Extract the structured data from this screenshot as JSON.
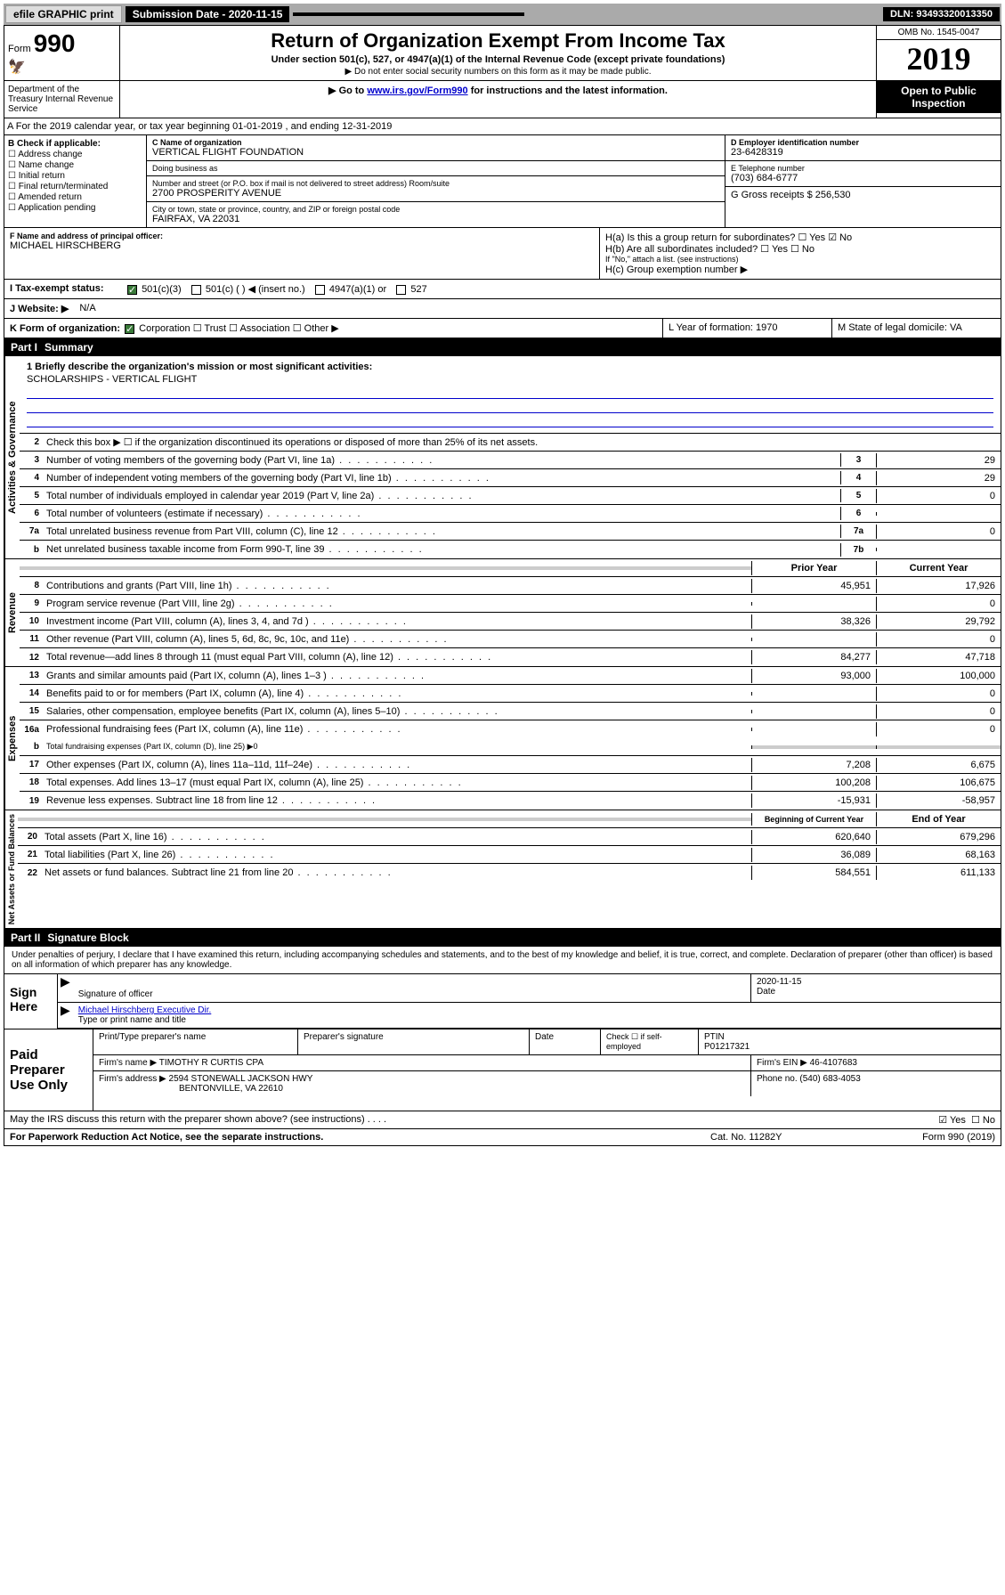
{
  "topbar": {
    "efile": "efile GRAPHIC print",
    "sub_label": "Submission Date - 2020-11-15",
    "dln": "DLN: 93493320013350"
  },
  "header": {
    "form_prefix": "Form",
    "form_no": "990",
    "title": "Return of Organization Exempt From Income Tax",
    "subtitle": "Under section 501(c), 527, or 4947(a)(1) of the Internal Revenue Code (except private foundations)",
    "note1": "▶ Do not enter social security numbers on this form as it may be made public.",
    "note2_pre": "▶ Go to ",
    "note2_link": "www.irs.gov/Form990",
    "note2_post": " for instructions and the latest information.",
    "omb": "OMB No. 1545-0047",
    "year": "2019",
    "open": "Open to Public Inspection",
    "dept": "Department of the Treasury Internal Revenue Service"
  },
  "a_row": "A For the 2019 calendar year, or tax year beginning 01-01-2019    , and ending 12-31-2019",
  "box_b": {
    "label": "B Check if applicable:",
    "items": [
      "☐ Address change",
      "☐ Name change",
      "☐ Initial return",
      "☐ Final return/terminated",
      "☐ Amended return",
      "☐ Application pending"
    ]
  },
  "box_c": {
    "name_label": "C Name of organization",
    "name": "VERTICAL FLIGHT FOUNDATION",
    "dba_label": "Doing business as",
    "addr_label": "Number and street (or P.O. box if mail is not delivered to street address)    Room/suite",
    "addr": "2700 PROSPERITY AVENUE",
    "city_label": "City or town, state or province, country, and ZIP or foreign postal code",
    "city": "FAIRFAX, VA  22031"
  },
  "box_d": {
    "label": "D Employer identification number",
    "value": "23-6428319"
  },
  "box_e": {
    "label": "E Telephone number",
    "value": "(703) 684-6777"
  },
  "box_g": {
    "label": "G Gross receipts $ 256,530"
  },
  "box_f": {
    "label": "F  Name and address of principal officer:",
    "value": "MICHAEL HIRSCHBERG"
  },
  "box_h": {
    "a": "H(a)  Is this a group return for subordinates?",
    "a_yes": "☐ Yes",
    "a_no": "☑ No",
    "b": "H(b)  Are all subordinates included?",
    "b_yes": "☐ Yes",
    "b_no": "☐ No",
    "b_note": "If \"No,\" attach a list. (see instructions)",
    "c": "H(c)  Group exemption number ▶"
  },
  "row_i": {
    "label": "I    Tax-exempt status:",
    "opt1": "501(c)(3)",
    "opt2": "501(c) (  ) ◀ (insert no.)",
    "opt3": "4947(a)(1) or",
    "opt4": "527"
  },
  "row_j": {
    "label": "J   Website: ▶",
    "value": "N/A"
  },
  "row_k": {
    "label": "K Form of organization:",
    "opts": "Corporation  ☐ Trust  ☐ Association  ☐ Other ▶",
    "l": "L Year of formation: 1970",
    "m": "M State of legal domicile: VA"
  },
  "part1": {
    "no": "Part I",
    "title": "Summary"
  },
  "sideLabels": {
    "gov": "Activities & Governance",
    "rev": "Revenue",
    "exp": "Expenses",
    "net": "Net Assets or Fund Balances"
  },
  "mission": {
    "prompt": "1  Briefly describe the organization's mission or most significant activities:",
    "text": "SCHOLARSHIPS - VERTICAL FLIGHT"
  },
  "line2": "Check this box ▶ ☐  if the organization discontinued its operations or disposed of more than 25% of its net assets.",
  "lines_gov": [
    {
      "n": "3",
      "t": "Number of voting members of the governing body (Part VI, line 1a)",
      "c": "3",
      "v": "29"
    },
    {
      "n": "4",
      "t": "Number of independent voting members of the governing body (Part VI, line 1b)",
      "c": "4",
      "v": "29"
    },
    {
      "n": "5",
      "t": "Total number of individuals employed in calendar year 2019 (Part V, line 2a)",
      "c": "5",
      "v": "0"
    },
    {
      "n": "6",
      "t": "Total number of volunteers (estimate if necessary)",
      "c": "6",
      "v": ""
    },
    {
      "n": "7a",
      "t": "Total unrelated business revenue from Part VIII, column (C), line 12",
      "c": "7a",
      "v": "0"
    },
    {
      "n": "b",
      "t": "Net unrelated business taxable income from Form 990-T, line 39",
      "c": "7b",
      "v": ""
    }
  ],
  "col_hdr": {
    "prior": "Prior Year",
    "curr": "Current Year"
  },
  "lines_rev": [
    {
      "n": "8",
      "t": "Contributions and grants (Part VIII, line 1h)",
      "p": "45,951",
      "c": "17,926"
    },
    {
      "n": "9",
      "t": "Program service revenue (Part VIII, line 2g)",
      "p": "",
      "c": "0"
    },
    {
      "n": "10",
      "t": "Investment income (Part VIII, column (A), lines 3, 4, and 7d )",
      "p": "38,326",
      "c": "29,792"
    },
    {
      "n": "11",
      "t": "Other revenue (Part VIII, column (A), lines 5, 6d, 8c, 9c, 10c, and 11e)",
      "p": "",
      "c": "0"
    },
    {
      "n": "12",
      "t": "Total revenue—add lines 8 through 11 (must equal Part VIII, column (A), line 12)",
      "p": "84,277",
      "c": "47,718"
    }
  ],
  "lines_exp": [
    {
      "n": "13",
      "t": "Grants and similar amounts paid (Part IX, column (A), lines 1–3 )",
      "p": "93,000",
      "c": "100,000"
    },
    {
      "n": "14",
      "t": "Benefits paid to or for members (Part IX, column (A), line 4)",
      "p": "",
      "c": "0"
    },
    {
      "n": "15",
      "t": "Salaries, other compensation, employee benefits (Part IX, column (A), lines 5–10)",
      "p": "",
      "c": "0"
    },
    {
      "n": "16a",
      "t": "Professional fundraising fees (Part IX, column (A), line 11e)",
      "p": "",
      "c": "0"
    }
  ],
  "line16b": {
    "n": "b",
    "t": "Total fundraising expenses (Part IX, column (D), line 25) ▶0"
  },
  "lines_exp2": [
    {
      "n": "17",
      "t": "Other expenses (Part IX, column (A), lines 11a–11d, 11f–24e)",
      "p": "7,208",
      "c": "6,675"
    },
    {
      "n": "18",
      "t": "Total expenses. Add lines 13–17 (must equal Part IX, column (A), line 25)",
      "p": "100,208",
      "c": "106,675"
    },
    {
      "n": "19",
      "t": "Revenue less expenses. Subtract line 18 from line 12",
      "p": "-15,931",
      "c": "-58,957"
    }
  ],
  "col_hdr2": {
    "prior": "Beginning of Current Year",
    "curr": "End of Year"
  },
  "lines_net": [
    {
      "n": "20",
      "t": "Total assets (Part X, line 16)",
      "p": "620,640",
      "c": "679,296"
    },
    {
      "n": "21",
      "t": "Total liabilities (Part X, line 26)",
      "p": "36,089",
      "c": "68,163"
    },
    {
      "n": "22",
      "t": "Net assets or fund balances. Subtract line 21 from line 20",
      "p": "584,551",
      "c": "611,133"
    }
  ],
  "part2": {
    "no": "Part II",
    "title": "Signature Block"
  },
  "perjury": "Under penalties of perjury, I declare that I have examined this return, including accompanying schedules and statements, and to the best of my knowledge and belief, it is true, correct, and complete. Declaration of preparer (other than officer) is based on all information of which preparer has any knowledge.",
  "sign": {
    "here": "Sign Here",
    "sig_label": "Signature of officer",
    "date": "2020-11-15",
    "date_label": "Date",
    "name": "Michael Hirschberg  Executive Dir.",
    "name_label": "Type or print name and title"
  },
  "paid": {
    "label": "Paid Preparer Use Only",
    "h1": "Print/Type preparer's name",
    "h2": "Preparer's signature",
    "h3": "Date",
    "h4_pre": "Check ☐ if self-employed",
    "h5": "PTIN",
    "ptin": "P01217321",
    "firm_label": "Firm's name    ▶",
    "firm": "TIMOTHY R CURTIS CPA",
    "ein_label": "Firm's EIN ▶",
    "ein": "46-4107683",
    "addr_label": "Firm's address ▶",
    "addr1": "2594 STONEWALL JACKSON HWY",
    "addr2": "BENTONVILLE, VA  22610",
    "phone_label": "Phone no.",
    "phone": "(540) 683-4053"
  },
  "footer": {
    "q": "May the IRS discuss this return with the preparer shown above? (see instructions)",
    "yes": "☑ Yes",
    "no": "☐ No",
    "notice": "For Paperwork Reduction Act Notice, see the separate instructions.",
    "cat": "Cat. No. 11282Y",
    "form": "Form 990 (2019)"
  }
}
